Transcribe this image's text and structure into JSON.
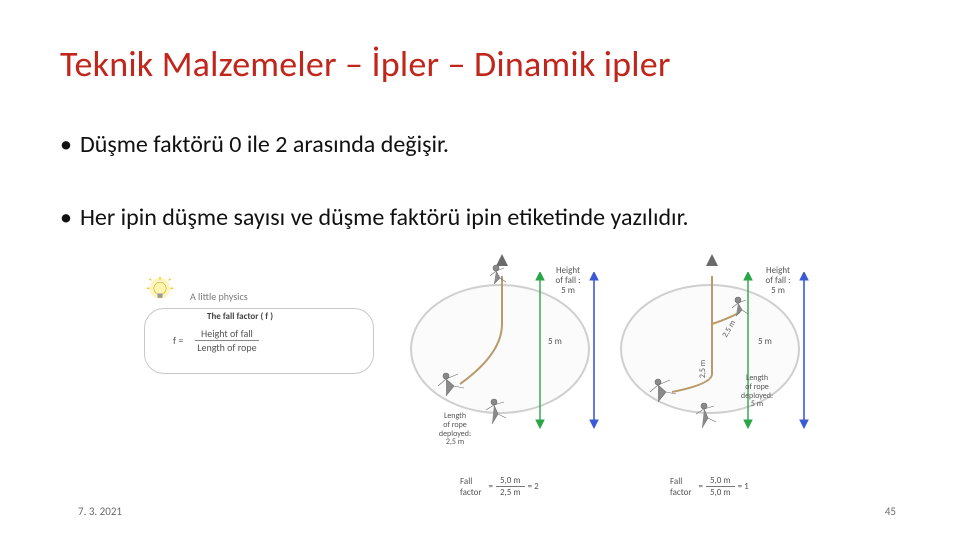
{
  "title": {
    "text": "Teknik Malzemeler – İpler – Dinamik ipler",
    "color": "#c0261b",
    "fontsize": 36
  },
  "bullets": [
    "Düşme faktörü 0 ile 2 arasında değişir.",
    "Her ipin düşme sayısı ve düşme faktörü ipin etiketinde yazılıdır."
  ],
  "formula": {
    "hint": "A little physics",
    "caption": "The fall factor ( f )",
    "lhs": "f =",
    "numerator": "Height of fall",
    "denominator": "Length of rope",
    "bulb_colors": {
      "glow": "#ffe97a",
      "glass": "#fff4b0",
      "base": "#9a9a9a"
    }
  },
  "diagrams": {
    "oval_border": "#cfcfcf",
    "rope_color": "#b99a6a",
    "arrow_green": "#2aa64a",
    "arrow_blue": "#3b5bd6",
    "text_color": "#555555",
    "panel1": {
      "height_of_fall": "5 m",
      "height_label": "Height\nof fall :\n5 m",
      "length_label": "Length\nof rope\ndeployed:\n2,5 m",
      "side_value": "5 m",
      "calc_label": "Fall\nfactor",
      "calc_num": "5,0 m",
      "calc_den": "2,5 m",
      "calc_result": "= 2"
    },
    "panel2": {
      "height_label": "Height\nof fall :\n5 m",
      "length_label": "Length\nof rope\ndeployed:\n5 m",
      "side_value": "5 m",
      "mid_value": "2,5 m",
      "rope_len_vert": "2,5 m",
      "calc_label": "Fall\nfactor",
      "calc_num": "5,0 m",
      "calc_den": "5,0 m",
      "calc_result": "= 1"
    }
  },
  "footer": {
    "date": "7. 3. 2021",
    "page": "45"
  }
}
